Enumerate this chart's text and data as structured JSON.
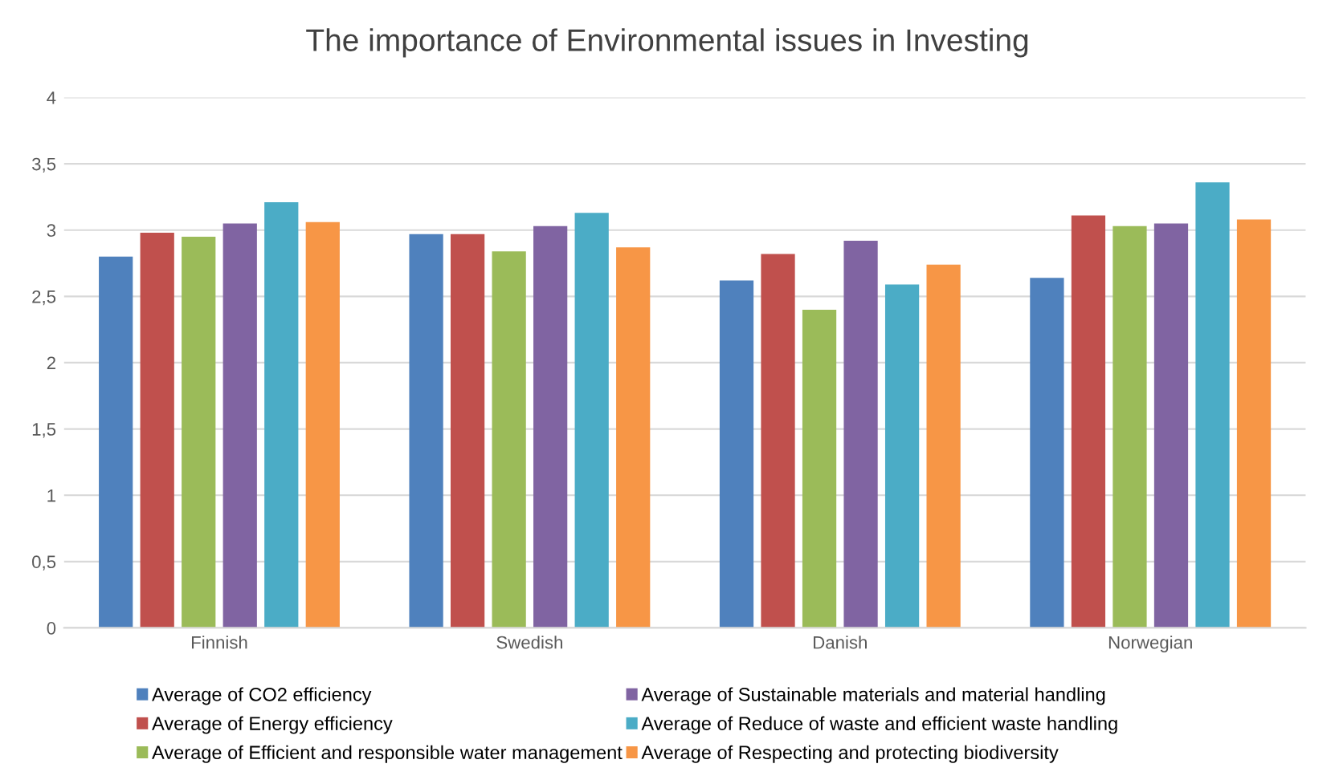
{
  "chart_data": {
    "type": "bar",
    "title": "The importance of Environmental issues in Investing",
    "categories": [
      "Finnish",
      "Swedish",
      "Danish",
      "Norwegian"
    ],
    "series": [
      {
        "name": "Average of CO2 efficiency",
        "color": "#4f81bd",
        "values": [
          2.8,
          2.97,
          2.62,
          2.64
        ]
      },
      {
        "name": "Average of Energy efficiency",
        "color": "#c0504d",
        "values": [
          2.98,
          2.97,
          2.82,
          3.11
        ]
      },
      {
        "name": "Average of Efficient and responsible water management",
        "color": "#9bbb59",
        "values": [
          2.95,
          2.84,
          2.4,
          3.03
        ]
      },
      {
        "name": "Average of Sustainable materials and material handling",
        "color": "#8064a2",
        "values": [
          3.05,
          3.03,
          2.92,
          3.05
        ]
      },
      {
        "name": "Average of Reduce of waste and efficient waste handling",
        "color": "#4bacc6",
        "values": [
          3.21,
          3.13,
          2.59,
          3.36
        ]
      },
      {
        "name": "Average of Respecting and protecting biodiversity",
        "color": "#f79646",
        "values": [
          3.06,
          2.87,
          2.74,
          3.08
        ]
      }
    ],
    "ylim": [
      0,
      4
    ],
    "yticks": [
      0,
      {
        "value": 0.5,
        "label": "0,5"
      },
      1,
      {
        "value": 1.5,
        "label": "1,5"
      },
      2,
      {
        "value": 2.5,
        "label": "2,5"
      },
      3,
      {
        "value": 3.5,
        "label": "3,5"
      },
      4
    ],
    "grid": "y",
    "legend": "bottom"
  }
}
